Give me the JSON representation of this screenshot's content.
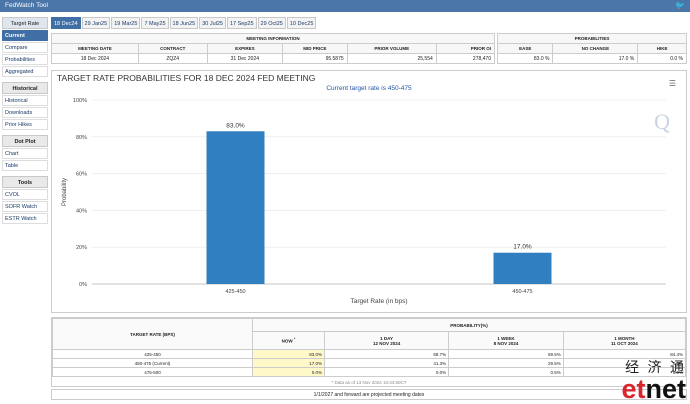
{
  "app": {
    "title": "FedWatch Tool"
  },
  "sidebar": {
    "sections": [
      {
        "title": "Target Rate",
        "items": [
          "Current",
          "Compare",
          "Probabilities",
          "Aggregated"
        ]
      },
      {
        "title": "Historical",
        "items": [
          "Historical",
          "Downloads",
          "Prior Hikes"
        ]
      },
      {
        "title": "Dot Plot",
        "items": [
          "Chart",
          "Table"
        ]
      },
      {
        "title": "Tools",
        "items": [
          "CVOL",
          "SOFR Watch",
          "ESTR Watch"
        ]
      }
    ]
  },
  "tabs": [
    "18 Dec24",
    "29 Jan25",
    "19 Mar25",
    "7 May25",
    "18 Jun25",
    "30 Jul25",
    "17 Sep25",
    "29 Oct25",
    "10 Dec25"
  ],
  "meeting_info": {
    "section_title": "MEETING INFORMATION",
    "headers": [
      "MEETING DATE",
      "CONTRACT",
      "EXPIRES",
      "MID PRICE",
      "PRIOR VOLUME",
      "PRIOR OI"
    ],
    "values": [
      "18 Dec 2024",
      "ZQZ4",
      "31 Dec 2024",
      "95.5875",
      "25,554",
      "278,470"
    ]
  },
  "probabilities": {
    "section_title": "PROBABILITIES",
    "headers": [
      "EASE",
      "NO CHANGE",
      "HIKE"
    ],
    "values": [
      "83.0 %",
      "17.0 %",
      "0.0 %"
    ]
  },
  "chart_data": {
    "type": "bar",
    "title": "TARGET RATE PROBABILITIES FOR 18 DEC 2024 FED MEETING",
    "subtitle": "Current target rate is 450-475",
    "categories": [
      "425-450",
      "450-475"
    ],
    "values": [
      83.0,
      17.0
    ],
    "value_labels": [
      "83.0%",
      "17.0%"
    ],
    "xlabel": "Target Rate (in bps)",
    "ylabel": "Probability",
    "ylim": [
      0,
      100
    ],
    "yticks": [
      "0%",
      "20%",
      "40%",
      "60%",
      "80%",
      "100%"
    ],
    "color": "#2f7fc1",
    "grid": true
  },
  "bottom": {
    "col1_header": "TARGET RATE (BPS)",
    "prob_header": "PROBABILITY(%)",
    "now_label": "NOW",
    "now_marker": "*",
    "periods": [
      {
        "label": "1 DAY",
        "date": "12 NOV 2024"
      },
      {
        "label": "1 WEEK",
        "date": "8 NOV 2024"
      },
      {
        "label": "1 MONTH",
        "date": "11 OCT 2024"
      }
    ],
    "rows": [
      {
        "rate": "425-450",
        "now": "83.0%",
        "day": "58.7%",
        "week": "69.5%",
        "month": "84.4%"
      },
      {
        "rate": "450-475 (Current)",
        "now": "17.0%",
        "day": "41.3%",
        "week": "29.5%",
        "month": "0.0%"
      },
      {
        "rate": "475-500",
        "now": "0.0%",
        "day": "0.0%",
        "week": "0.5%",
        "month": "0.0%"
      }
    ],
    "footnote": "* Data as of 13 Nov 2024 16:34:50CT",
    "projected_note": "1/1/2027 and forward are projected meeting dates"
  },
  "logo": {
    "cn": "经 济 通",
    "en_prefix": "et",
    "en_suffix": "net"
  }
}
